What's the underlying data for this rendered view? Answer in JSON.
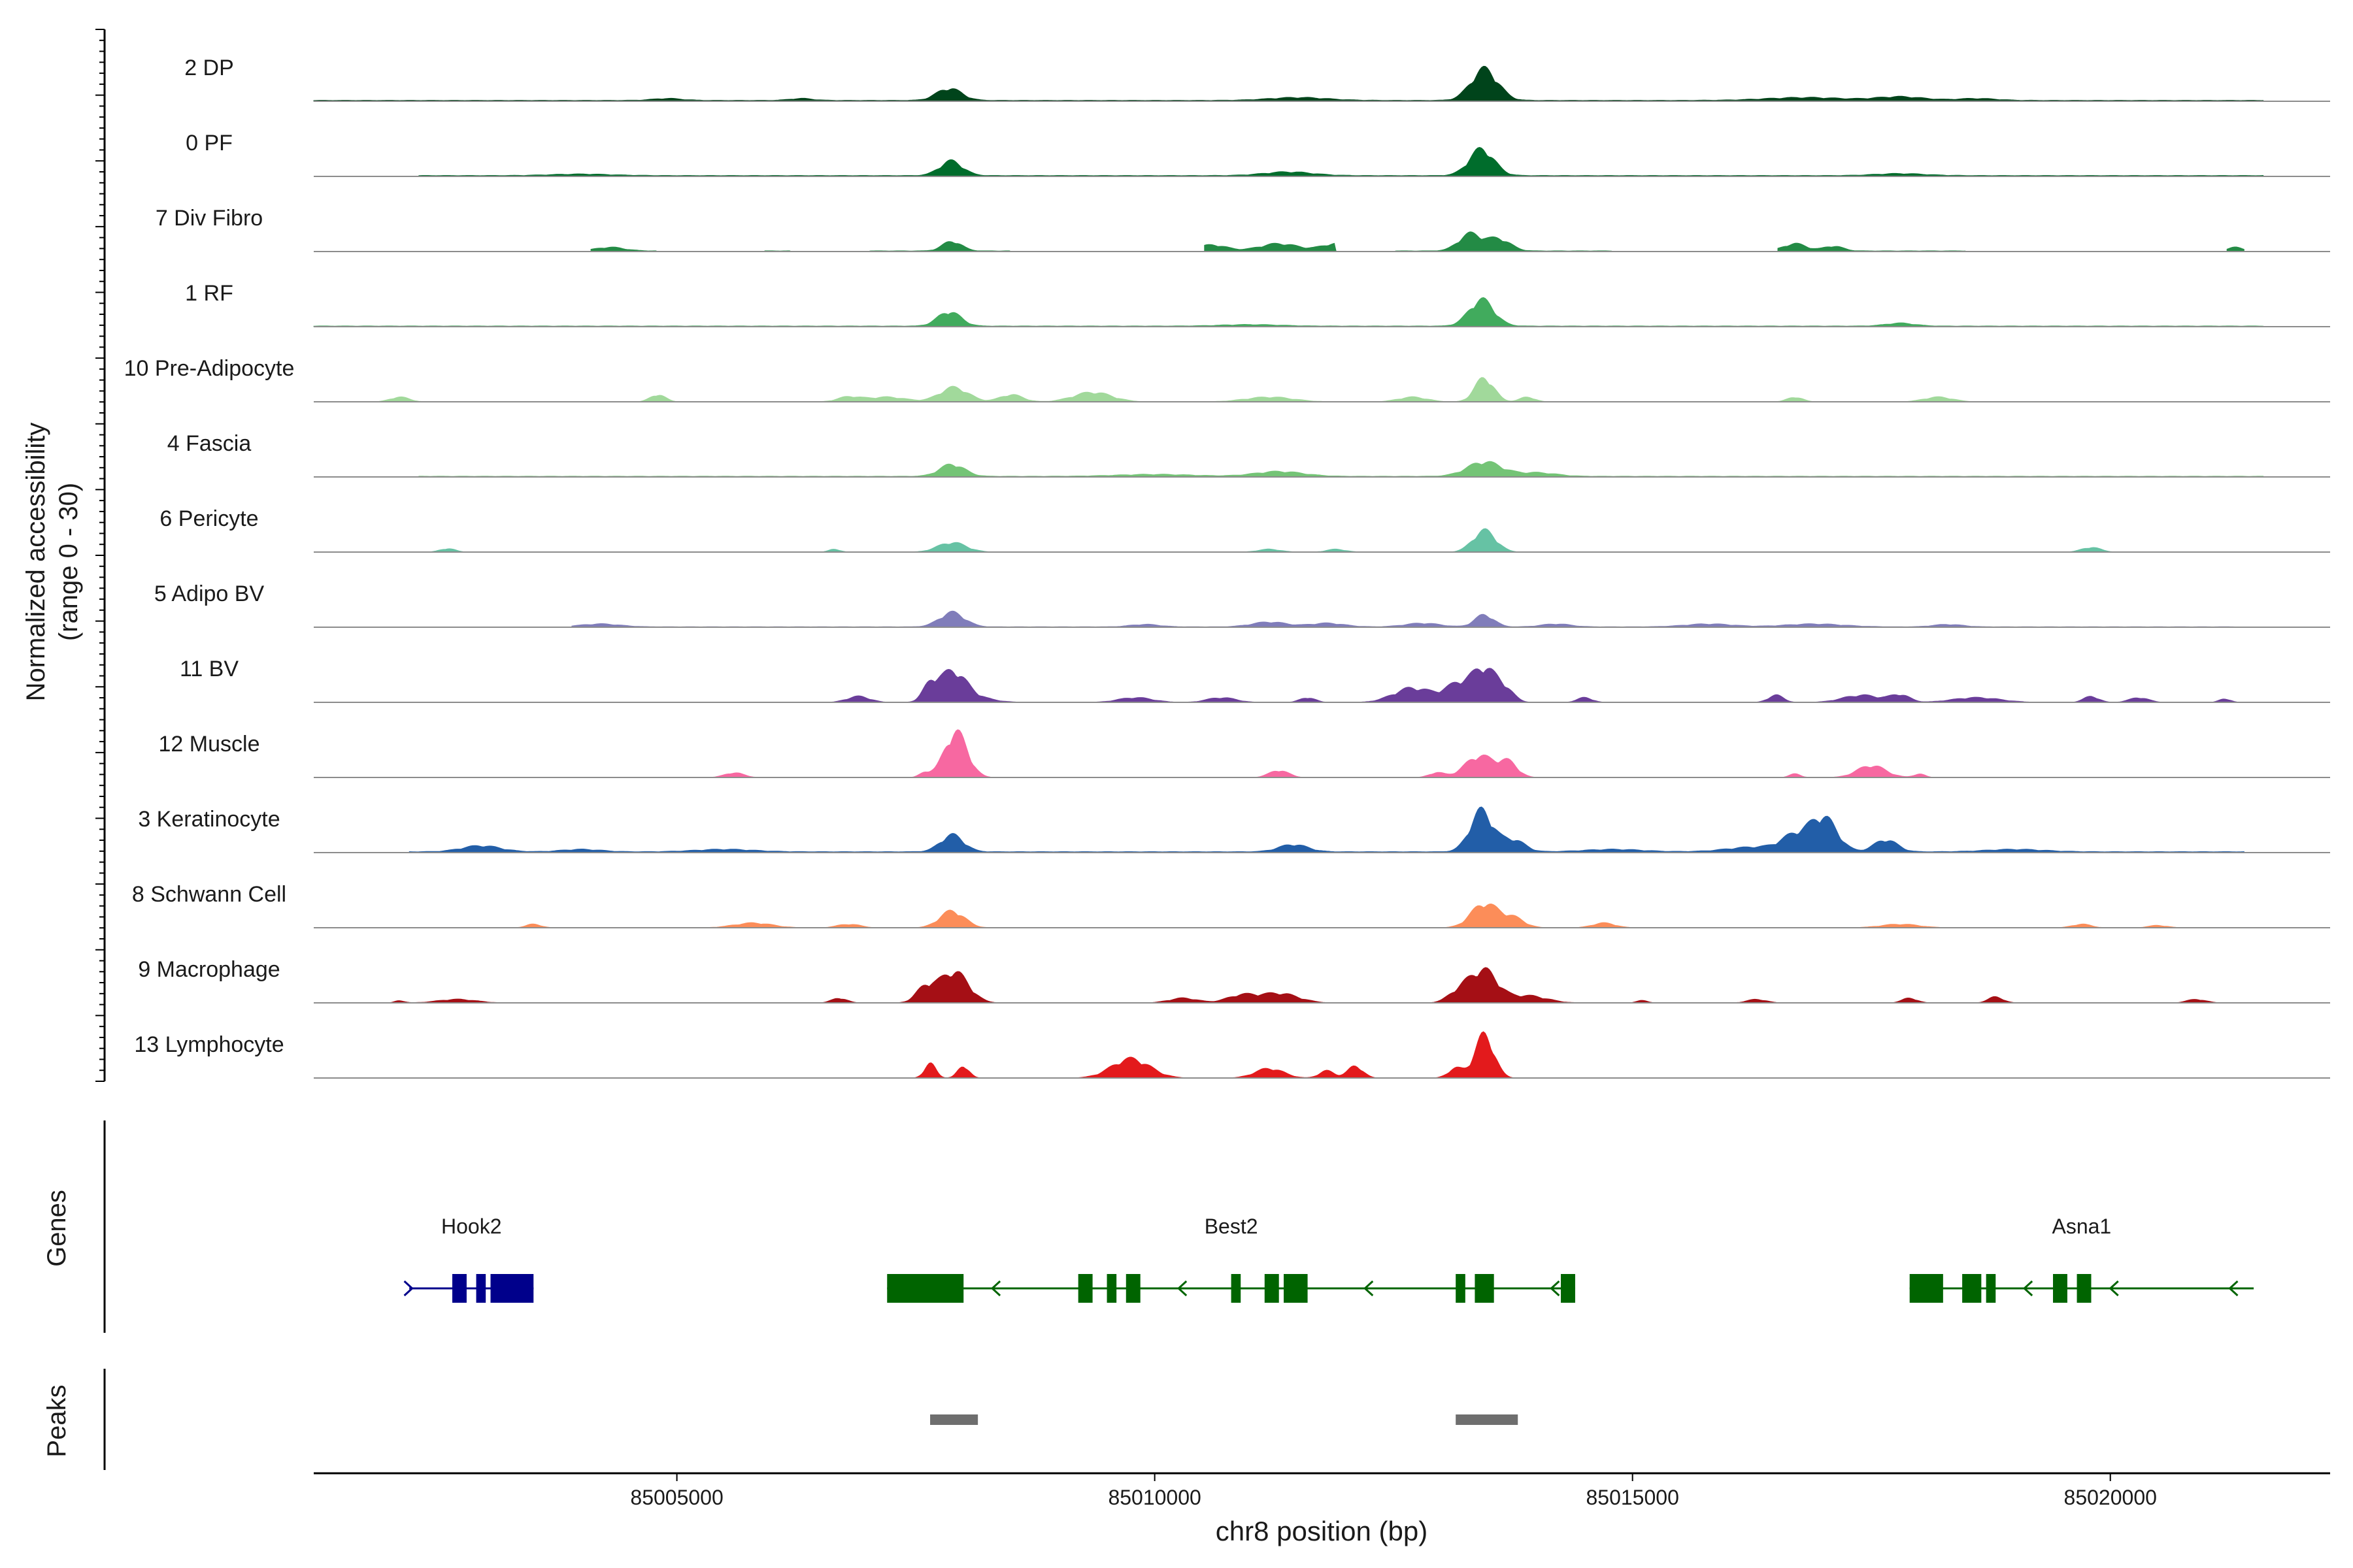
{
  "chart_data": {
    "type": "area",
    "title": "",
    "ylabel_line1": "Normalized accessibility",
    "ylabel_line2": "(range 0 - 30)",
    "xlabel": "chr8 position (bp)",
    "xlim": [
      85001200,
      85022300
    ],
    "xticks": [
      85005000,
      85010000,
      85015000,
      85020000
    ],
    "xtick_labels": [
      "85005000",
      "85010000",
      "85015000",
      "85020000"
    ],
    "ylim": [
      0,
      30
    ],
    "tracks": [
      {
        "name": "2 DP",
        "color": "#00441b",
        "base": 0.4,
        "extent": [
          85001200,
          85021600
        ],
        "gaps": [],
        "peaks": [
          [
            85007850,
            5,
            130
          ],
          [
            85013450,
            13,
            140
          ],
          [
            85011500,
            1.2,
            300
          ],
          [
            85016800,
            1.2,
            400
          ],
          [
            85017800,
            1.5,
            250
          ],
          [
            85018600,
            0.8,
            200
          ],
          [
            85004900,
            0.8,
            150
          ],
          [
            85006300,
            0.8,
            120
          ]
        ]
      },
      {
        "name": "0 PF",
        "color": "#006d2c",
        "base": 0.4,
        "extent": [
          85002300,
          85021600
        ],
        "gaps": [],
        "peaks": [
          [
            85007870,
            6,
            120
          ],
          [
            85013420,
            11,
            130
          ],
          [
            85011400,
            1.5,
            250
          ],
          [
            85017800,
            0.8,
            250
          ],
          [
            85004000,
            0.6,
            300
          ]
        ]
      },
      {
        "name": "7 Div Fibro",
        "color": "#238b45",
        "base": 0.3,
        "extent": [
          85004100,
          85021400
        ],
        "gaps": [
          [
            85004800,
            85005900
          ],
          [
            85006200,
            85007000
          ],
          [
            85008500,
            85010500
          ],
          [
            85011900,
            85012500
          ],
          [
            85014800,
            85016500
          ],
          [
            85018500,
            85021200
          ]
        ],
        "peaks": [
          [
            85007880,
            4,
            100
          ],
          [
            85010600,
            2.5,
            150
          ],
          [
            85011300,
            3,
            200
          ],
          [
            85011900,
            3,
            150
          ],
          [
            85013300,
            7,
            120
          ],
          [
            85013600,
            5,
            120
          ],
          [
            85016700,
            3,
            120
          ],
          [
            85017100,
            2,
            100
          ],
          [
            85004300,
            1.5,
            150
          ],
          [
            85021300,
            1.5,
            80
          ]
        ]
      },
      {
        "name": "1 RF",
        "color": "#41ab5d",
        "base": 0.3,
        "extent": [
          85001200,
          85021600
        ],
        "gaps": [],
        "peaks": [
          [
            85007850,
            6,
            120
          ],
          [
            85013420,
            11,
            130
          ],
          [
            85017800,
            1.2,
            150
          ],
          [
            85011000,
            0.6,
            300
          ]
        ]
      },
      {
        "name": "10 Pre-Adipocyte",
        "color": "#a1d99b",
        "base": 0,
        "extent": [
          85001200,
          85022300
        ],
        "gaps": [],
        "peaks": [
          [
            85007900,
            6,
            150
          ],
          [
            85013450,
            10,
            100
          ],
          [
            85009350,
            4,
            200
          ],
          [
            85008500,
            3,
            120
          ],
          [
            85006800,
            2,
            120
          ],
          [
            85007200,
            2,
            200
          ],
          [
            85004800,
            3,
            80
          ],
          [
            85002100,
            2,
            100
          ],
          [
            85011200,
            2,
            250
          ],
          [
            85012700,
            2,
            150
          ],
          [
            85013900,
            2,
            80
          ],
          [
            85016700,
            2,
            80
          ],
          [
            85018200,
            2,
            150
          ]
        ]
      },
      {
        "name": "4 Fascia",
        "color": "#74c476",
        "base": 0.3,
        "extent": [
          85002300,
          85021600
        ],
        "gaps": [],
        "peaks": [
          [
            85007880,
            5,
            130
          ],
          [
            85013450,
            6,
            180
          ],
          [
            85011300,
            2,
            250
          ],
          [
            85014000,
            1.5,
            200
          ],
          [
            85010000,
            0.8,
            400
          ]
        ]
      },
      {
        "name": "6 Pericyte",
        "color": "#66c2a4",
        "base": 0,
        "extent": [
          85001200,
          85022300
        ],
        "gaps": [],
        "peaks": [
          [
            85007880,
            4,
            150
          ],
          [
            85013450,
            9,
            120
          ],
          [
            85002600,
            1.5,
            80
          ],
          [
            85011200,
            1.2,
            120
          ],
          [
            85011900,
            1.2,
            100
          ],
          [
            85019800,
            2,
            100
          ],
          [
            85006650,
            1.2,
            60
          ]
        ]
      },
      {
        "name": "5 Adipo BV",
        "color": "#807dba",
        "base": 0.2,
        "extent": [
          85003900,
          85021300
        ],
        "gaps": [],
        "peaks": [
          [
            85007880,
            6,
            130
          ],
          [
            85013450,
            5,
            100
          ],
          [
            85011200,
            2,
            180
          ],
          [
            85011800,
            1.5,
            180
          ],
          [
            85012800,
            1.5,
            180
          ],
          [
            85004200,
            1.2,
            200
          ],
          [
            85015800,
            1.2,
            250
          ],
          [
            85016900,
            1.2,
            300
          ],
          [
            85014200,
            1.2,
            150
          ],
          [
            85009900,
            1,
            150
          ],
          [
            85018300,
            1,
            150
          ]
        ]
      },
      {
        "name": "11 BV",
        "color": "#6a3d9a",
        "base": 0,
        "extent": [
          85001200,
          85022300
        ],
        "gaps": [],
        "peaks": [
          [
            85007880,
            12,
            140
          ],
          [
            85007650,
            6,
            80
          ],
          [
            85006900,
            2.5,
            120
          ],
          [
            85008100,
            2,
            200
          ],
          [
            85012700,
            6,
            200
          ],
          [
            85013200,
            8,
            150
          ],
          [
            85013450,
            12,
            110
          ],
          [
            85013650,
            6,
            100
          ],
          [
            85009800,
            2,
            180
          ],
          [
            85010700,
            2,
            150
          ],
          [
            85011600,
            2,
            80
          ],
          [
            85014500,
            2,
            80
          ],
          [
            85016500,
            3,
            80
          ],
          [
            85017400,
            3,
            200
          ],
          [
            85017800,
            3,
            100
          ],
          [
            85018600,
            2,
            250
          ],
          [
            85019800,
            2.5,
            80
          ],
          [
            85020300,
            2,
            100
          ],
          [
            85021200,
            1.5,
            60
          ]
        ]
      },
      {
        "name": "12 Muscle",
        "color": "#f768a1",
        "base": 0,
        "extent": [
          85001200,
          85022300
        ],
        "gaps": [],
        "peaks": [
          [
            85007920,
            19,
            120
          ],
          [
            85013400,
            9,
            150
          ],
          [
            85013700,
            6,
            100
          ],
          [
            85011300,
            3,
            100
          ],
          [
            85005600,
            2,
            100
          ],
          [
            85007600,
            2,
            60
          ],
          [
            85012950,
            2,
            80
          ],
          [
            85017500,
            5,
            150
          ],
          [
            85016700,
            1.5,
            60
          ],
          [
            85018000,
            1.5,
            60
          ]
        ]
      },
      {
        "name": "3 Keratinocyte",
        "color": "#225ea8",
        "base": 0.4,
        "extent": [
          85002200,
          85021400
        ],
        "gaps": [],
        "peaks": [
          [
            85013420,
            17,
            120
          ],
          [
            85013750,
            5,
            120
          ],
          [
            85017000,
            14,
            140
          ],
          [
            85016700,
            6,
            140
          ],
          [
            85017650,
            5,
            120
          ],
          [
            85016300,
            2,
            300
          ],
          [
            85007880,
            7,
            120
          ],
          [
            85011450,
            3,
            150
          ],
          [
            85002950,
            2.5,
            200
          ],
          [
            85014800,
            1,
            300
          ],
          [
            85005500,
            1,
            300
          ],
          [
            85019000,
            1,
            300
          ],
          [
            85004000,
            1,
            200
          ]
        ]
      },
      {
        "name": "8 Schwann Cell",
        "color": "#fc8d59",
        "base": 0,
        "extent": [
          85001200,
          85022300
        ],
        "gaps": [],
        "peaks": [
          [
            85007880,
            7,
            130
          ],
          [
            85013450,
            10,
            140
          ],
          [
            85013750,
            4,
            120
          ],
          [
            85014700,
            2,
            120
          ],
          [
            85005800,
            2,
            200
          ],
          [
            85003500,
            1.5,
            80
          ],
          [
            85006800,
            1.5,
            120
          ],
          [
            85017800,
            1.5,
            200
          ],
          [
            85019700,
            1.5,
            100
          ],
          [
            85020500,
            1,
            100
          ]
        ]
      },
      {
        "name": "9 Macrophage",
        "color": "#a50f15",
        "base": 0,
        "extent": [
          85001200,
          85022300
        ],
        "gaps": [],
        "peaks": [
          [
            85007900,
            13,
            150
          ],
          [
            85007600,
            6,
            100
          ],
          [
            85013450,
            13,
            140
          ],
          [
            85013200,
            5,
            120
          ],
          [
            85011300,
            4,
            200
          ],
          [
            85010900,
            3,
            150
          ],
          [
            85010300,
            2,
            150
          ],
          [
            85013900,
            3,
            200
          ],
          [
            85006700,
            2,
            80
          ],
          [
            85002700,
            1.5,
            200
          ],
          [
            85018800,
            2.5,
            80
          ],
          [
            85017900,
            2,
            80
          ],
          [
            85016300,
            1.5,
            100
          ],
          [
            85020900,
            1.5,
            100
          ],
          [
            85015100,
            1,
            60
          ],
          [
            85002100,
            1,
            50
          ]
        ]
      },
      {
        "name": "13 Lymphocyte",
        "color": "#e31a1c",
        "base": 0,
        "extent": [
          85001200,
          85022300
        ],
        "gaps": [],
        "peaks": [
          [
            85013450,
            18,
            100
          ],
          [
            85013150,
            4,
            80
          ],
          [
            85009750,
            8,
            200
          ],
          [
            85007650,
            6,
            60
          ],
          [
            85008000,
            5,
            60
          ],
          [
            85011200,
            4,
            150
          ],
          [
            85011800,
            3,
            80
          ],
          [
            85012100,
            5,
            80
          ]
        ]
      }
    ],
    "genes_label": "Genes",
    "genes": [
      {
        "name": "Hook2",
        "color": "#00008b",
        "strand": "+",
        "start": 85002200,
        "end": 85003500,
        "exons": [
          [
            85002650,
            85002800
          ],
          [
            85002900,
            85003000
          ],
          [
            85003050,
            85003500
          ]
        ],
        "arrows": [
          85002230
        ]
      },
      {
        "name": "Best2",
        "color": "#006400",
        "strand": "-",
        "start": 85007200,
        "end": 85014400,
        "exons": [
          [
            85007200,
            85008000
          ],
          [
            85009200,
            85009350
          ],
          [
            85009500,
            85009600
          ],
          [
            85009700,
            85009850
          ],
          [
            85010800,
            85010900
          ],
          [
            85011150,
            85011300
          ],
          [
            85011350,
            85011600
          ],
          [
            85013150,
            85013250
          ],
          [
            85013350,
            85013550
          ],
          [
            85014250,
            85014400
          ]
        ],
        "arrows": [
          85008300,
          85010250,
          85012200,
          85014150
        ]
      },
      {
        "name": "Asna1",
        "color": "#006400",
        "strand": "-",
        "start": 85017900,
        "end": 85021500,
        "exons": [
          [
            85017900,
            85018250
          ],
          [
            85018450,
            85018650
          ],
          [
            85018700,
            85018800
          ],
          [
            85019400,
            85019550
          ],
          [
            85019650,
            85019800
          ]
        ],
        "arrows": [
          85019100,
          85020000,
          85021250
        ]
      }
    ],
    "peaks_label": "Peaks",
    "peak_regions": [
      [
        85007650,
        85008150
      ],
      [
        85013150,
        85013800
      ]
    ]
  }
}
